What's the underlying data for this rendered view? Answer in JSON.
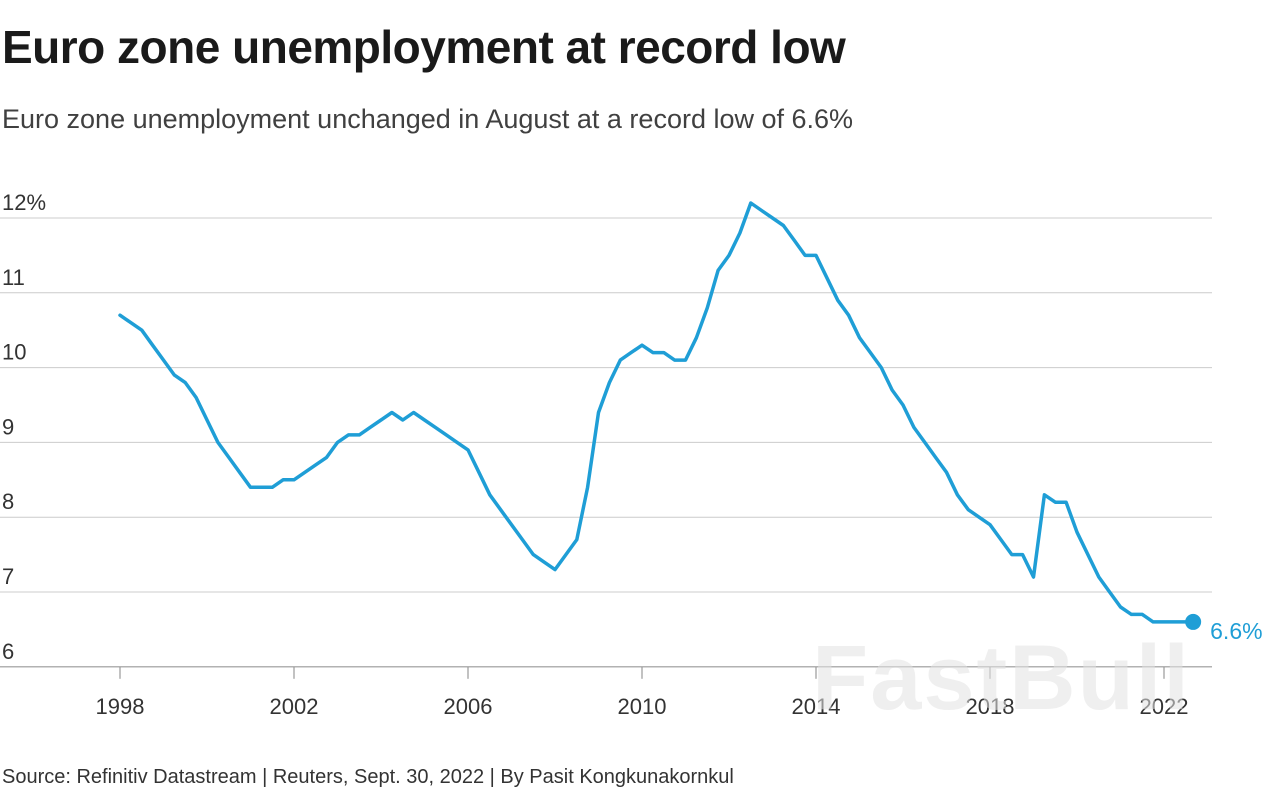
{
  "title": "Euro zone unemployment at record low",
  "subtitle": "Euro zone unemployment unchanged in August at a record low of 6.6%",
  "source": "Source: Refinitiv Datastream | Reuters, Sept. 30, 2022 | By Pasit Kongkunakornkul",
  "watermark": "FastBull",
  "colors": {
    "line": "#1f9ed6",
    "grid": "#cccccc",
    "axis": "#999999"
  },
  "chart_data": {
    "type": "line",
    "title": "Euro zone unemployment at record low",
    "xlabel": "",
    "ylabel": "",
    "ylim": [
      6,
      12
    ],
    "xlim": [
      1998,
      2022.67
    ],
    "y_ticks": [
      {
        "value": 12,
        "label": "12%"
      },
      {
        "value": 11,
        "label": "11"
      },
      {
        "value": 10,
        "label": "10"
      },
      {
        "value": 9,
        "label": "9"
      },
      {
        "value": 8,
        "label": "8"
      },
      {
        "value": 7,
        "label": "7"
      },
      {
        "value": 6,
        "label": "6"
      }
    ],
    "x_ticks": [
      {
        "value": 1998,
        "label": "1998"
      },
      {
        "value": 2002,
        "label": "2002"
      },
      {
        "value": 2006,
        "label": "2006"
      },
      {
        "value": 2010,
        "label": "2010"
      },
      {
        "value": 2014,
        "label": "2014"
      },
      {
        "value": 2018,
        "label": "2018"
      },
      {
        "value": 2022,
        "label": "2022"
      }
    ],
    "grid": true,
    "end_label": "6.6%",
    "series": [
      {
        "x": [
          1998.0,
          1998.25,
          1998.5,
          1998.75,
          1999.0,
          1999.25,
          1999.5,
          1999.75,
          2000.0,
          2000.25,
          2000.5,
          2000.75,
          2001.0,
          2001.25,
          2001.5,
          2001.75,
          2002.0,
          2002.25,
          2002.5,
          2002.75,
          2003.0,
          2003.25,
          2003.5,
          2003.75,
          2004.0,
          2004.25,
          2004.5,
          2004.75,
          2005.0,
          2005.25,
          2005.5,
          2005.75,
          2006.0,
          2006.25,
          2006.5,
          2006.75,
          2007.0,
          2007.25,
          2007.5,
          2007.75,
          2008.0,
          2008.25,
          2008.5,
          2008.75,
          2009.0,
          2009.25,
          2009.5,
          2009.75,
          2010.0,
          2010.25,
          2010.5,
          2010.75,
          2011.0,
          2011.25,
          2011.5,
          2011.75,
          2012.0,
          2012.25,
          2012.5,
          2012.75,
          2013.0,
          2013.25,
          2013.5,
          2013.75,
          2014.0,
          2014.25,
          2014.5,
          2014.75,
          2015.0,
          2015.25,
          2015.5,
          2015.75,
          2016.0,
          2016.25,
          2016.5,
          2016.75,
          2017.0,
          2017.25,
          2017.5,
          2017.75,
          2018.0,
          2018.25,
          2018.5,
          2018.75,
          2019.0,
          2019.25,
          2019.5,
          2019.75,
          2020.0,
          2020.25,
          2020.5,
          2020.75,
          2021.0,
          2021.25,
          2021.5,
          2021.75,
          2022.0,
          2022.25,
          2022.5,
          2022.67
        ],
        "values": [
          10.7,
          10.6,
          10.5,
          10.3,
          10.1,
          9.9,
          9.8,
          9.6,
          9.3,
          9.0,
          8.8,
          8.6,
          8.4,
          8.4,
          8.4,
          8.5,
          8.5,
          8.6,
          8.7,
          8.8,
          9.0,
          9.1,
          9.1,
          9.2,
          9.3,
          9.4,
          9.3,
          9.4,
          9.3,
          9.2,
          9.1,
          9.0,
          8.9,
          8.6,
          8.3,
          8.1,
          7.9,
          7.7,
          7.5,
          7.4,
          7.3,
          7.5,
          7.7,
          8.4,
          9.4,
          9.8,
          10.1,
          10.2,
          10.3,
          10.2,
          10.2,
          10.1,
          10.1,
          10.4,
          10.8,
          11.3,
          11.5,
          11.8,
          12.2,
          12.1,
          12.0,
          11.9,
          11.7,
          11.5,
          11.5,
          11.2,
          10.9,
          10.7,
          10.4,
          10.2,
          10.0,
          9.7,
          9.5,
          9.2,
          9.0,
          8.8,
          8.6,
          8.3,
          8.1,
          8.0,
          7.9,
          7.7,
          7.5,
          7.5,
          7.2,
          8.3,
          8.2,
          8.2,
          7.8,
          7.5,
          7.2,
          7.0,
          6.8,
          6.7,
          6.7,
          6.6,
          6.6,
          6.6,
          6.6,
          6.6
        ]
      }
    ]
  }
}
